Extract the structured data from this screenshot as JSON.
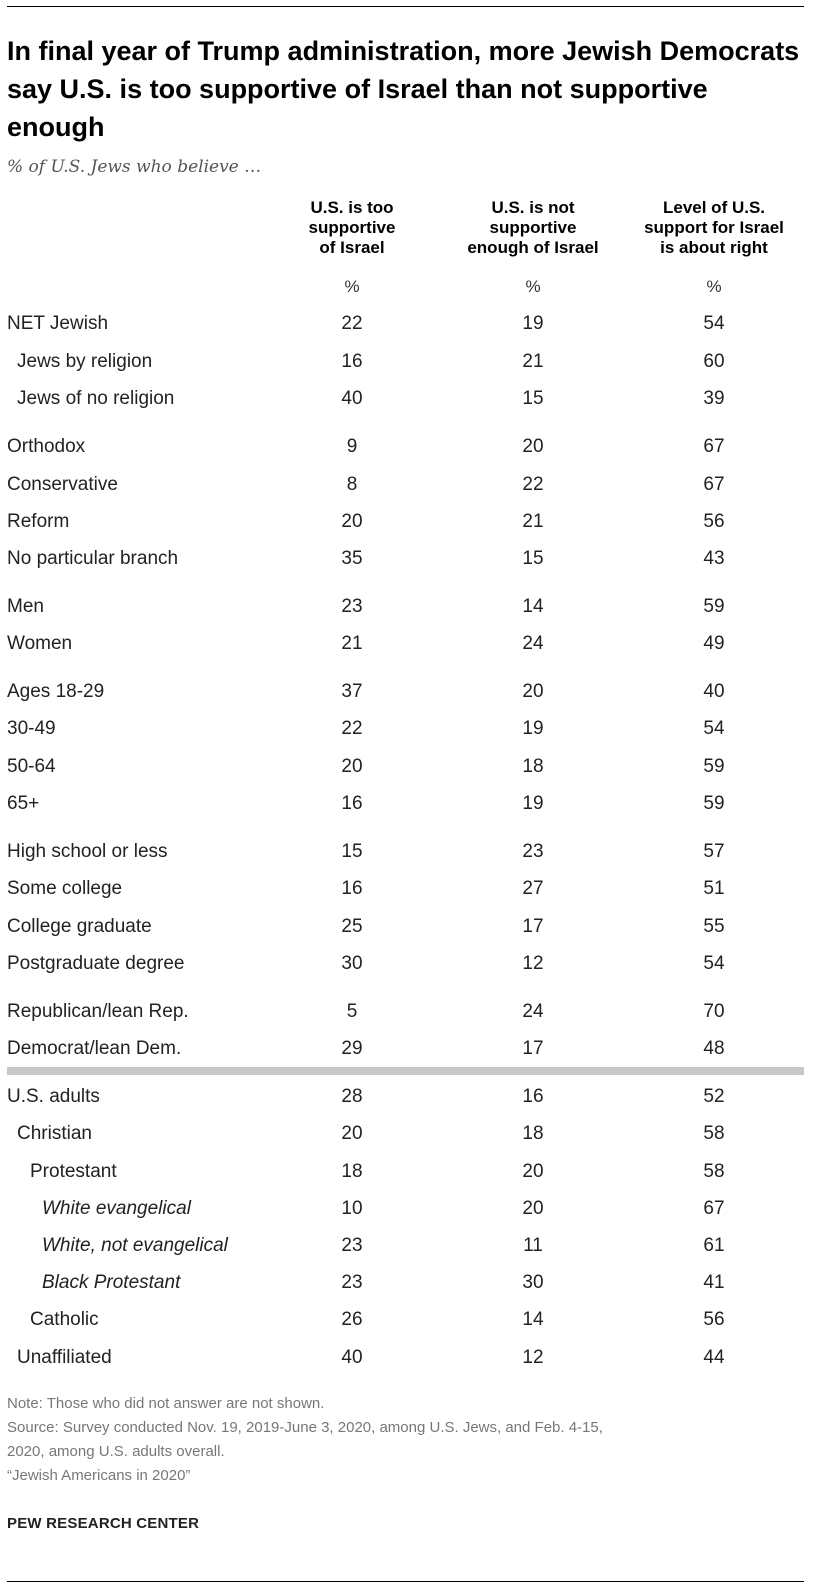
{
  "title": "In final year of Trump administration, more Jewish Democrats say U.S. is too supportive of Israel than not supportive enough",
  "subtitle": "% of U.S. Jews who believe …",
  "chart_data": {
    "type": "table",
    "columns": [
      {
        "header": [
          "U.S. is too",
          "supportive",
          "of Israel"
        ],
        "unit": "%"
      },
      {
        "header": [
          "U.S. is not",
          "supportive",
          "enough of Israel"
        ],
        "unit": "%"
      },
      {
        "header": [
          "Level of U.S.",
          "support for Israel",
          "is about right"
        ],
        "unit": "%"
      }
    ],
    "rows": [
      {
        "label": "NET Jewish",
        "indent": 0,
        "italic": false,
        "values": [
          22,
          19,
          54
        ]
      },
      {
        "label": "Jews by religion",
        "indent": 1,
        "italic": false,
        "values": [
          16,
          21,
          60
        ]
      },
      {
        "label": "Jews of no religion",
        "indent": 1,
        "italic": false,
        "values": [
          40,
          15,
          39
        ]
      },
      {
        "label": "Orthodox",
        "indent": 0,
        "italic": false,
        "values": [
          9,
          20,
          67
        ]
      },
      {
        "label": "Conservative",
        "indent": 0,
        "italic": false,
        "values": [
          8,
          22,
          67
        ]
      },
      {
        "label": "Reform",
        "indent": 0,
        "italic": false,
        "values": [
          20,
          21,
          56
        ]
      },
      {
        "label": "No particular branch",
        "indent": 0,
        "italic": false,
        "values": [
          35,
          15,
          43
        ]
      },
      {
        "label": "Men",
        "indent": 0,
        "italic": false,
        "values": [
          23,
          14,
          59
        ]
      },
      {
        "label": "Women",
        "indent": 0,
        "italic": false,
        "values": [
          21,
          24,
          49
        ]
      },
      {
        "label": "Ages 18-29",
        "indent": 0,
        "italic": false,
        "values": [
          37,
          20,
          40
        ]
      },
      {
        "label": "30-49",
        "indent": 0,
        "italic": false,
        "values": [
          22,
          19,
          54
        ]
      },
      {
        "label": "50-64",
        "indent": 0,
        "italic": false,
        "values": [
          20,
          18,
          59
        ]
      },
      {
        "label": "65+",
        "indent": 0,
        "italic": false,
        "values": [
          16,
          19,
          59
        ]
      },
      {
        "label": "High school or less",
        "indent": 0,
        "italic": false,
        "values": [
          15,
          23,
          57
        ]
      },
      {
        "label": "Some college",
        "indent": 0,
        "italic": false,
        "values": [
          16,
          27,
          51
        ]
      },
      {
        "label": "College graduate",
        "indent": 0,
        "italic": false,
        "values": [
          25,
          17,
          55
        ]
      },
      {
        "label": "Postgraduate degree",
        "indent": 0,
        "italic": false,
        "values": [
          30,
          12,
          54
        ]
      },
      {
        "label": "Republican/lean Rep.",
        "indent": 0,
        "italic": false,
        "values": [
          5,
          24,
          70
        ]
      },
      {
        "label": "Democrat/lean Dem.",
        "indent": 0,
        "italic": false,
        "values": [
          29,
          17,
          48
        ]
      },
      {
        "label": "U.S. adults",
        "indent": 0,
        "italic": false,
        "values": [
          28,
          16,
          52
        ]
      },
      {
        "label": "Christian",
        "indent": 1,
        "italic": false,
        "values": [
          20,
          18,
          58
        ]
      },
      {
        "label": "Protestant",
        "indent": 2,
        "italic": false,
        "values": [
          18,
          20,
          58
        ]
      },
      {
        "label": "White evangelical",
        "indent": 3,
        "italic": true,
        "values": [
          10,
          20,
          67
        ]
      },
      {
        "label": "White, not evangelical",
        "indent": 3,
        "italic": true,
        "values": [
          23,
          11,
          61
        ]
      },
      {
        "label": "Black Protestant",
        "indent": 3,
        "italic": true,
        "values": [
          23,
          30,
          41
        ]
      },
      {
        "label": "Catholic",
        "indent": 2,
        "italic": false,
        "values": [
          26,
          14,
          56
        ]
      },
      {
        "label": "Unaffiliated",
        "indent": 1,
        "italic": false,
        "values": [
          40,
          12,
          44
        ]
      }
    ]
  },
  "notes": {
    "note": "Note: Those who did not answer are not shown.",
    "source_line1": "Source: Survey conducted Nov. 19, 2019-June 3, 2020, among U.S. Jews, and Feb. 4-15,",
    "source_line2": "2020, among U.S. adults overall.",
    "report": "“Jewish Americans in 2020”"
  },
  "brand": "PEW RESEARCH CENTER"
}
